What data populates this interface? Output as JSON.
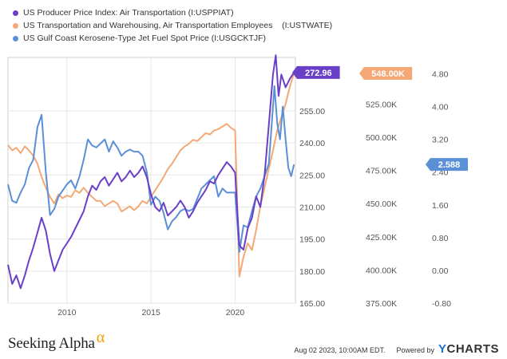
{
  "legend": [
    {
      "label": "US Producer Price Index: Air Transportation (I:USPPIAT)",
      "color": "#6a3fc8"
    },
    {
      "label": "US Transportation and Warehousing, Air Transportation Employees    (I:USTWATE)",
      "color": "#f4a876"
    },
    {
      "label": "US Gulf Coast Kerosene-Type Jet Fuel Spot Price (I:USGCKTJF)",
      "color": "#5b8fd6"
    }
  ],
  "footer": {
    "brand": "Seeking Alpha",
    "brand_symbol": "α",
    "date": "Aug 02 2023, 10:00AM EDT.",
    "powered": "Powered by",
    "ycharts_y": "Y",
    "ycharts_rest": "CHARTS"
  },
  "chart_data": {
    "type": "line",
    "x_ticks": [
      "2010",
      "2015",
      "2020"
    ],
    "xlim": [
      "2006-07",
      "2023-08"
    ],
    "grid": true,
    "axes": [
      {
        "id": "ppi",
        "ticks": [
          "165.00",
          "180.00",
          "195.00",
          "210.00",
          "225.00",
          "240.00",
          "255.00"
        ],
        "ylim": [
          165,
          280
        ]
      },
      {
        "id": "employees",
        "ticks": [
          "375.00K",
          "400.00K",
          "425.00K",
          "450.00K",
          "475.00K",
          "500.00K",
          "525.00K",
          "550.00K"
        ],
        "ylim": [
          375000,
          560000
        ]
      },
      {
        "id": "jetfuel",
        "ticks": [
          "-0.80",
          "0.00",
          "0.80",
          "1.60",
          "2.40",
          "3.20",
          "4.00",
          "4.80"
        ],
        "ylim": [
          -0.8,
          5.2
        ]
      }
    ],
    "series": [
      {
        "name": "US Producer Price Index: Air Transportation (I:USPPIAT)",
        "axis": "ppi",
        "color": "#6a3fc8",
        "last_label": "272.96",
        "points": [
          [
            "2006-07",
            183
          ],
          [
            "2006-10",
            174
          ],
          [
            "2007-01",
            178
          ],
          [
            "2007-04",
            172
          ],
          [
            "2007-07",
            178
          ],
          [
            "2007-10",
            185
          ],
          [
            "2008-01",
            191
          ],
          [
            "2008-04",
            198
          ],
          [
            "2008-07",
            205
          ],
          [
            "2008-10",
            199
          ],
          [
            "2009-01",
            188
          ],
          [
            "2009-04",
            180
          ],
          [
            "2009-07",
            185
          ],
          [
            "2009-10",
            190
          ],
          [
            "2010-01",
            193
          ],
          [
            "2010-04",
            196
          ],
          [
            "2010-07",
            200
          ],
          [
            "2010-10",
            204
          ],
          [
            "2011-01",
            208
          ],
          [
            "2011-04",
            215
          ],
          [
            "2011-07",
            220
          ],
          [
            "2011-10",
            218
          ],
          [
            "2012-01",
            222
          ],
          [
            "2012-04",
            224
          ],
          [
            "2012-07",
            220
          ],
          [
            "2012-10",
            223
          ],
          [
            "2013-01",
            226
          ],
          [
            "2013-04",
            222
          ],
          [
            "2013-07",
            224
          ],
          [
            "2013-10",
            227
          ],
          [
            "2014-01",
            224
          ],
          [
            "2014-04",
            226
          ],
          [
            "2014-07",
            229
          ],
          [
            "2014-10",
            224
          ],
          [
            "2015-01",
            216
          ],
          [
            "2015-04",
            210
          ],
          [
            "2015-07",
            208
          ],
          [
            "2015-10",
            212
          ],
          [
            "2016-01",
            206
          ],
          [
            "2016-04",
            208
          ],
          [
            "2016-07",
            210
          ],
          [
            "2016-10",
            213
          ],
          [
            "2017-01",
            210
          ],
          [
            "2017-04",
            205
          ],
          [
            "2017-07",
            208
          ],
          [
            "2017-10",
            212
          ],
          [
            "2018-01",
            215
          ],
          [
            "2018-04",
            218
          ],
          [
            "2018-07",
            222
          ],
          [
            "2018-10",
            221
          ],
          [
            "2019-01",
            225
          ],
          [
            "2019-04",
            228
          ],
          [
            "2019-07",
            231
          ],
          [
            "2019-10",
            229
          ],
          [
            "2020-01",
            226
          ],
          [
            "2020-04",
            192
          ],
          [
            "2020-07",
            190
          ],
          [
            "2020-10",
            200
          ],
          [
            "2021-01",
            205
          ],
          [
            "2021-04",
            215
          ],
          [
            "2021-07",
            210
          ],
          [
            "2021-10",
            225
          ],
          [
            "2022-01",
            248
          ],
          [
            "2022-04",
            272
          ],
          [
            "2022-06",
            281
          ],
          [
            "2022-08",
            262
          ],
          [
            "2022-10",
            272
          ],
          [
            "2023-01",
            266
          ],
          [
            "2023-04",
            270
          ],
          [
            "2023-07",
            272.96
          ]
        ]
      },
      {
        "name": "US Transportation and Warehousing, Air Transportation Employees    (I:USTWATE)",
        "axis": "employees",
        "color": "#f4a876",
        "last_label": "548.00K",
        "points": [
          [
            "2006-07",
            494000
          ],
          [
            "2006-10",
            490000
          ],
          [
            "2007-01",
            492000
          ],
          [
            "2007-04",
            488000
          ],
          [
            "2007-07",
            493000
          ],
          [
            "2007-10",
            490000
          ],
          [
            "2008-01",
            486000
          ],
          [
            "2008-04",
            480000
          ],
          [
            "2008-07",
            470000
          ],
          [
            "2008-10",
            462000
          ],
          [
            "2009-01",
            455000
          ],
          [
            "2009-04",
            450000
          ],
          [
            "2009-07",
            457000
          ],
          [
            "2009-10",
            454000
          ],
          [
            "2010-01",
            456000
          ],
          [
            "2010-04",
            455000
          ],
          [
            "2010-07",
            460000
          ],
          [
            "2010-10",
            458000
          ],
          [
            "2011-01",
            462000
          ],
          [
            "2011-04",
            458000
          ],
          [
            "2011-07",
            455000
          ],
          [
            "2011-10",
            452000
          ],
          [
            "2012-01",
            452000
          ],
          [
            "2012-04",
            448000
          ],
          [
            "2012-07",
            450000
          ],
          [
            "2012-10",
            452000
          ],
          [
            "2013-01",
            450000
          ],
          [
            "2013-04",
            444000
          ],
          [
            "2013-07",
            446000
          ],
          [
            "2013-10",
            448000
          ],
          [
            "2014-01",
            445000
          ],
          [
            "2014-04",
            448000
          ],
          [
            "2014-07",
            452000
          ],
          [
            "2014-10",
            450000
          ],
          [
            "2015-01",
            455000
          ],
          [
            "2015-04",
            460000
          ],
          [
            "2015-07",
            465000
          ],
          [
            "2015-10",
            470000
          ],
          [
            "2016-01",
            476000
          ],
          [
            "2016-04",
            480000
          ],
          [
            "2016-07",
            485000
          ],
          [
            "2016-10",
            490000
          ],
          [
            "2017-01",
            493000
          ],
          [
            "2017-04",
            495000
          ],
          [
            "2017-07",
            498000
          ],
          [
            "2017-10",
            497000
          ],
          [
            "2018-01",
            500000
          ],
          [
            "2018-04",
            503000
          ],
          [
            "2018-07",
            502000
          ],
          [
            "2018-10",
            505000
          ],
          [
            "2019-01",
            506000
          ],
          [
            "2019-04",
            508000
          ],
          [
            "2019-07",
            510000
          ],
          [
            "2019-10",
            507000
          ],
          [
            "2020-01",
            505000
          ],
          [
            "2020-04",
            395000
          ],
          [
            "2020-07",
            410000
          ],
          [
            "2020-10",
            420000
          ],
          [
            "2021-01",
            415000
          ],
          [
            "2021-04",
            430000
          ],
          [
            "2021-07",
            448000
          ],
          [
            "2021-10",
            462000
          ],
          [
            "2022-01",
            476000
          ],
          [
            "2022-04",
            490000
          ],
          [
            "2022-07",
            505000
          ],
          [
            "2022-10",
            515000
          ],
          [
            "2023-01",
            525000
          ],
          [
            "2023-04",
            538000
          ],
          [
            "2023-07",
            548000
          ]
        ]
      },
      {
        "name": "US Gulf Coast Kerosene-Type Jet Fuel Spot Price (I:USGCKTJF)",
        "axis": "jetfuel",
        "color": "#5b8fd6",
        "last_label": "2.588",
        "points": [
          [
            "2006-07",
            2.1
          ],
          [
            "2006-10",
            1.7
          ],
          [
            "2007-01",
            1.65
          ],
          [
            "2007-04",
            1.9
          ],
          [
            "2007-07",
            2.1
          ],
          [
            "2007-10",
            2.5
          ],
          [
            "2008-01",
            2.7
          ],
          [
            "2008-04",
            3.5
          ],
          [
            "2008-07",
            3.8
          ],
          [
            "2008-10",
            2.4
          ],
          [
            "2009-01",
            1.35
          ],
          [
            "2009-04",
            1.5
          ],
          [
            "2009-07",
            1.8
          ],
          [
            "2009-10",
            1.95
          ],
          [
            "2010-01",
            2.1
          ],
          [
            "2010-04",
            2.2
          ],
          [
            "2010-07",
            2.0
          ],
          [
            "2010-10",
            2.3
          ],
          [
            "2011-01",
            2.7
          ],
          [
            "2011-04",
            3.2
          ],
          [
            "2011-07",
            3.05
          ],
          [
            "2011-10",
            3.0
          ],
          [
            "2012-01",
            3.1
          ],
          [
            "2012-04",
            3.2
          ],
          [
            "2012-07",
            2.9
          ],
          [
            "2012-10",
            3.15
          ],
          [
            "2013-01",
            3.0
          ],
          [
            "2013-04",
            2.8
          ],
          [
            "2013-07",
            2.9
          ],
          [
            "2013-10",
            2.95
          ],
          [
            "2014-01",
            2.9
          ],
          [
            "2014-04",
            2.9
          ],
          [
            "2014-07",
            2.8
          ],
          [
            "2014-10",
            2.4
          ],
          [
            "2015-01",
            1.6
          ],
          [
            "2015-04",
            1.8
          ],
          [
            "2015-07",
            1.7
          ],
          [
            "2015-10",
            1.4
          ],
          [
            "2016-01",
            1.0
          ],
          [
            "2016-04",
            1.2
          ],
          [
            "2016-07",
            1.3
          ],
          [
            "2016-10",
            1.45
          ],
          [
            "2017-01",
            1.5
          ],
          [
            "2017-04",
            1.45
          ],
          [
            "2017-07",
            1.5
          ],
          [
            "2017-10",
            1.75
          ],
          [
            "2018-01",
            2.0
          ],
          [
            "2018-04",
            2.1
          ],
          [
            "2018-07",
            2.2
          ],
          [
            "2018-10",
            2.3
          ],
          [
            "2019-01",
            1.8
          ],
          [
            "2019-04",
            2.0
          ],
          [
            "2019-07",
            1.9
          ],
          [
            "2019-10",
            1.9
          ],
          [
            "2020-01",
            1.9
          ],
          [
            "2020-04",
            0.45
          ],
          [
            "2020-07",
            1.1
          ],
          [
            "2020-10",
            1.05
          ],
          [
            "2021-01",
            1.45
          ],
          [
            "2021-04",
            1.8
          ],
          [
            "2021-07",
            2.0
          ],
          [
            "2021-10",
            2.3
          ],
          [
            "2022-01",
            2.6
          ],
          [
            "2022-03",
            3.5
          ],
          [
            "2022-05",
            4.5
          ],
          [
            "2022-07",
            3.6
          ],
          [
            "2022-09",
            3.2
          ],
          [
            "2022-11",
            4.0
          ],
          [
            "2023-01",
            3.2
          ],
          [
            "2023-03",
            2.5
          ],
          [
            "2023-05",
            2.3
          ],
          [
            "2023-07",
            2.588
          ]
        ]
      }
    ]
  }
}
